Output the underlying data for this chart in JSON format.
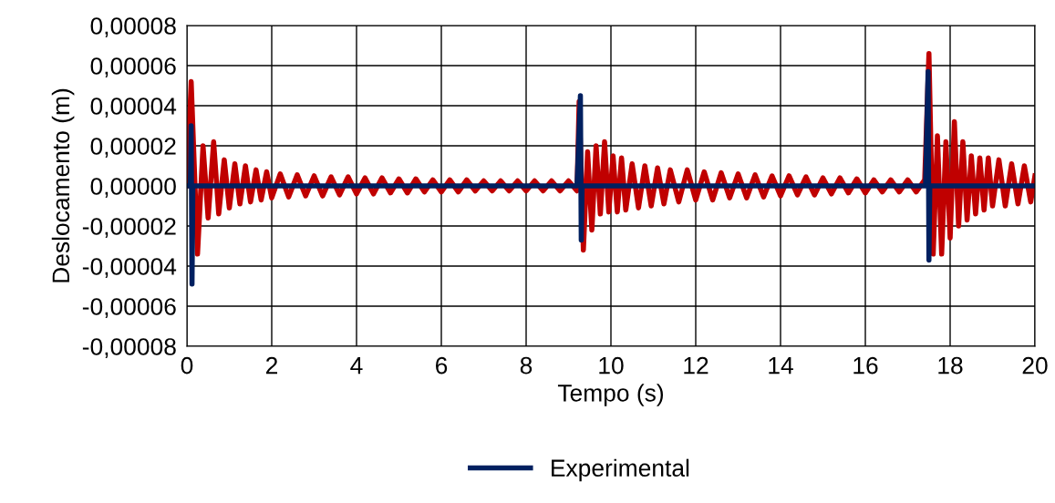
{
  "chart_data": {
    "type": "line",
    "xlabel": "Tempo (s)",
    "ylabel": "Deslocamento (m)",
    "xlim": [
      0,
      20
    ],
    "xticks": [
      0,
      2,
      4,
      6,
      8,
      10,
      12,
      14,
      16,
      18,
      20
    ],
    "ylim": [
      -8e-05,
      8e-05
    ],
    "yticks": [
      {
        "value": -8e-05,
        "label": "-0,00008"
      },
      {
        "value": -6e-05,
        "label": "-0,00006"
      },
      {
        "value": -4e-05,
        "label": "-0,00004"
      },
      {
        "value": -2e-05,
        "label": "-0,00002"
      },
      {
        "value": 0,
        "label": "0,00000"
      },
      {
        "value": 2e-05,
        "label": "0,00002"
      },
      {
        "value": 4e-05,
        "label": "0,00004"
      },
      {
        "value": 6e-05,
        "label": "0,00006"
      },
      {
        "value": 8e-05,
        "label": "0,00008"
      }
    ],
    "grid": true,
    "legend": "bottom",
    "marker": "none",
    "line_style": "solid",
    "series": [
      {
        "color": "#c00000",
        "x": [
          0,
          0.1,
          0.25,
          0.38,
          0.5,
          0.63,
          0.75,
          0.88,
          1.0,
          1.13,
          1.25,
          1.38,
          1.5,
          1.63,
          1.75,
          1.88,
          2.0,
          2.2,
          2.4,
          2.6,
          2.8,
          3.0,
          3.2,
          3.4,
          3.6,
          3.8,
          4.0,
          4.2,
          4.4,
          4.6,
          4.8,
          5.0,
          5.2,
          5.4,
          5.6,
          5.8,
          6.0,
          6.2,
          6.4,
          6.6,
          6.8,
          7.0,
          7.2,
          7.4,
          7.6,
          7.8,
          8.0,
          8.2,
          8.4,
          8.6,
          8.8,
          9.0,
          9.2,
          9.25,
          9.35,
          9.45,
          9.55,
          9.65,
          9.75,
          9.85,
          9.95,
          10.05,
          10.15,
          10.25,
          10.35,
          10.5,
          10.65,
          10.8,
          10.95,
          11.1,
          11.25,
          11.4,
          11.6,
          11.8,
          12.0,
          12.2,
          12.4,
          12.6,
          12.8,
          13.0,
          13.2,
          13.4,
          13.6,
          13.8,
          14.0,
          14.2,
          14.4,
          14.6,
          14.8,
          15.0,
          15.2,
          15.4,
          15.6,
          15.8,
          16.0,
          16.2,
          16.4,
          16.6,
          16.8,
          17.0,
          17.2,
          17.4,
          17.5,
          17.6,
          17.7,
          17.8,
          17.9,
          18.0,
          18.1,
          18.2,
          18.3,
          18.4,
          18.5,
          18.6,
          18.7,
          18.8,
          18.9,
          19.0,
          19.15,
          19.3,
          19.45,
          19.6,
          19.75,
          19.9,
          20.0
        ],
        "values": [
          0,
          5.2e-05,
          -3.4e-05,
          2e-05,
          -1.6e-05,
          2.2e-05,
          -1.4e-05,
          1.3e-05,
          -1.1e-05,
          1.1e-05,
          -9e-06,
          1e-05,
          -8e-06,
          8e-06,
          -7e-06,
          7e-06,
          -6e-06,
          6e-06,
          -5.5e-06,
          5.5e-06,
          -5e-06,
          5e-06,
          -5e-06,
          4.5e-06,
          -4.5e-06,
          4.5e-06,
          -4e-06,
          4e-06,
          -4e-06,
          4e-06,
          -3.5e-06,
          3.5e-06,
          -3.5e-06,
          3.5e-06,
          -3e-06,
          3e-06,
          -3e-06,
          3e-06,
          -3e-06,
          3e-06,
          -2.5e-06,
          2.5e-06,
          -2.5e-06,
          2.5e-06,
          -2.5e-06,
          2.5e-06,
          -2.5e-06,
          2.5e-06,
          -2.5e-06,
          2.5e-06,
          -2.5e-06,
          2.5e-06,
          -2.5e-06,
          4.2e-05,
          -3.2e-05,
          1.7e-05,
          -2.2e-05,
          2e-05,
          -1.4e-05,
          2.2e-05,
          -1.3e-05,
          1.5e-05,
          -1.3e-05,
          1.4e-05,
          -1.2e-05,
          1.1e-05,
          -1.1e-05,
          1e-05,
          -1e-05,
          9e-06,
          -9e-06,
          8e-06,
          -8e-06,
          8e-06,
          -7e-06,
          7e-06,
          -7e-06,
          6.5e-06,
          -6e-06,
          6e-06,
          -6e-06,
          5.5e-06,
          -5.5e-06,
          5e-06,
          -5e-06,
          5e-06,
          -4.5e-06,
          4.5e-06,
          -4.5e-06,
          4e-06,
          -4e-06,
          4e-06,
          -3.5e-06,
          3.5e-06,
          -3.5e-06,
          3e-06,
          -3e-06,
          3e-06,
          -3e-06,
          3e-06,
          -3e-06,
          3e-06,
          6.6e-05,
          -3.4e-05,
          2.5e-05,
          -3.4e-05,
          2.2e-05,
          -2.6e-05,
          3.2e-05,
          -2e-05,
          2.2e-05,
          -1.7e-05,
          1.5e-05,
          -1.4e-05,
          1.4e-05,
          -1.2e-05,
          1.4e-05,
          -1e-05,
          1.3e-05,
          -1e-05,
          1.1e-05,
          -9e-06,
          1e-05,
          -8e-06,
          5e-06
        ]
      },
      {
        "name": "Experimental",
        "color": "#002060",
        "x": [
          0,
          0.08,
          0.1,
          0.12,
          0.14,
          9.2,
          9.28,
          9.3,
          9.32,
          17.42,
          17.48,
          17.5,
          17.52,
          20
        ],
        "values": [
          0,
          0,
          3e-05,
          -4.9e-05,
          0,
          0,
          4.5e-05,
          -2.7e-05,
          0,
          0,
          5.7e-05,
          -3.7e-05,
          0,
          0
        ]
      }
    ]
  }
}
